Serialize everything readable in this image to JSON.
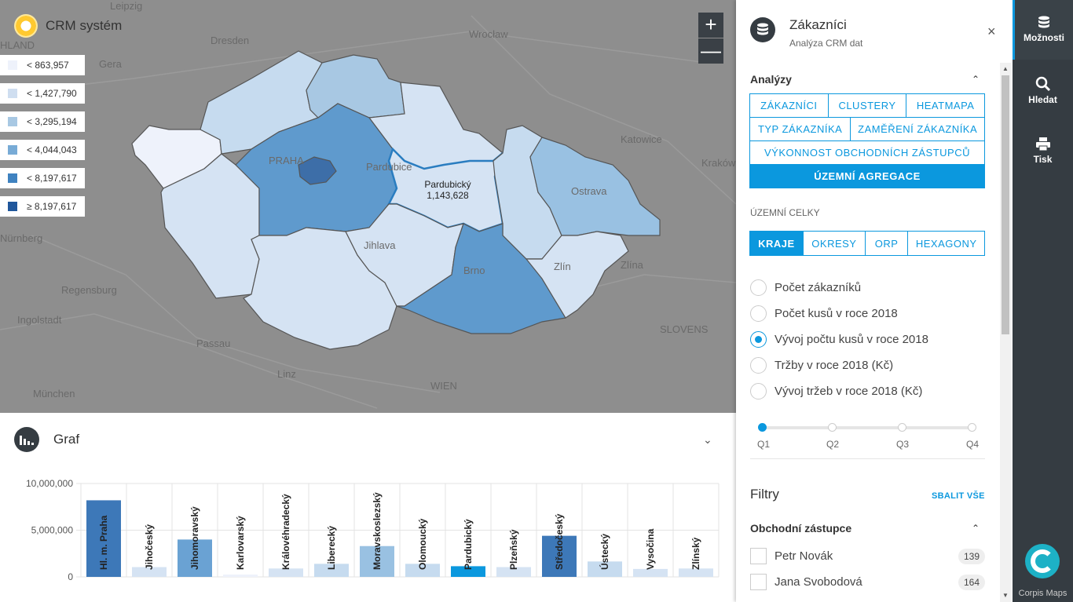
{
  "app": {
    "title": "CRM systém"
  },
  "legend": [
    {
      "label": "< 863,957",
      "color": "#eef2fb"
    },
    {
      "label": "< 1,427,790",
      "color": "#cfdef0"
    },
    {
      "label": "< 3,295,194",
      "color": "#a8c8e3"
    },
    {
      "label": "< 4,044,043",
      "color": "#78abd6"
    },
    {
      "label": "< 8,197,617",
      "color": "#3f82c0"
    },
    {
      "label": "≥ 8,197,617",
      "color": "#1f569b"
    }
  ],
  "map": {
    "zoom_in": "+",
    "zoom_out": "—",
    "tooltip_name": "Pardubický",
    "tooltip_value": "1,143,628",
    "bg_labels": [
      "Leipzig",
      "Dresden",
      "Wrocław",
      "Gera",
      "Katowice",
      "Kraków",
      "Ostrava",
      "PRAHA",
      "Pardubice",
      "Jihlava",
      "Brno",
      "Zlín",
      "Zlína",
      "Nürnberg",
      "Regensburg",
      "Ingolstadt",
      "Passau",
      "Linz",
      "WIEN",
      "München",
      "SLOVENS",
      "HLAND"
    ]
  },
  "chart_panel": {
    "title": "Graf",
    "toggle": "⌄"
  },
  "chart_data": {
    "type": "bar",
    "title": "",
    "xlabel": "",
    "ylabel": "",
    "ylim": [
      0,
      10000000
    ],
    "yticks": [
      "10,000,000",
      "5,000,000",
      "0"
    ],
    "categories": [
      "Hl. m. Praha",
      "Jihočeský",
      "Jihomoravský",
      "Karlovarský",
      "Královéhradecký",
      "Liberecký",
      "Moravskoslezský",
      "Olomoucký",
      "Pardubický",
      "Plzeňský",
      "Středočeský",
      "Ústecký",
      "Vysočina",
      "Zlínský"
    ],
    "values": [
      8200000,
      1050000,
      4000000,
      250000,
      900000,
      1400000,
      3300000,
      1400000,
      1143628,
      1050000,
      4400000,
      1650000,
      850000,
      900000
    ],
    "colors": [
      "#3d78b8",
      "#d5e3f3",
      "#6aa2d3",
      "#eef2fb",
      "#d5e3f3",
      "#c6dbef",
      "#99c1e2",
      "#c6dbef",
      "#0b98de",
      "#d5e3f3",
      "#3d78b8",
      "#c6dbef",
      "#d5e3f3",
      "#d5e3f3"
    ]
  },
  "panel": {
    "title": "Zákazníci",
    "subtitle": "Analýza CRM dat",
    "close": "×",
    "analyses_header": "Analýzy",
    "chevron_up": "⌃",
    "analysis_buttons": [
      [
        "ZÁKAZNÍCI",
        "CLUSTERY",
        "HEATMAPA"
      ],
      [
        "TYP ZÁKAZNÍKA",
        "ZAMĚŘENÍ ZÁKAZNÍKA"
      ],
      [
        "VÝKONNOST OBCHODNÍCH ZÁSTUPCŮ"
      ],
      [
        "ÚZEMNÍ AGREGACE"
      ]
    ],
    "units_label": "ÚZEMNÍ CELKY",
    "unit_buttons": [
      "KRAJE",
      "OKRESY",
      "ORP",
      "HEXAGONY"
    ],
    "radios": [
      {
        "label": "Počet zákazníků",
        "checked": false
      },
      {
        "label": "Počet kusů v roce 2018",
        "checked": false
      },
      {
        "label": "Vývoj počtu kusů v roce 2018",
        "checked": true
      },
      {
        "label": "Tržby v roce 2018 (Kč)",
        "checked": false
      },
      {
        "label": "Vývoj tržeb v roce 2018 (Kč)",
        "checked": false
      }
    ],
    "quarters": [
      "Q1",
      "Q2",
      "Q3",
      "Q4"
    ],
    "filters_title": "Filtry",
    "collapse_all": "SBALIT VŠE",
    "reps_header": "Obchodní zástupce",
    "reps": [
      {
        "name": "Petr Novák",
        "count": "139"
      },
      {
        "name": "Jana Svobodová",
        "count": "164"
      }
    ]
  },
  "nav": {
    "options": "Možnosti",
    "search": "Hledat",
    "print": "Tisk",
    "brand": "Corpis Maps"
  }
}
